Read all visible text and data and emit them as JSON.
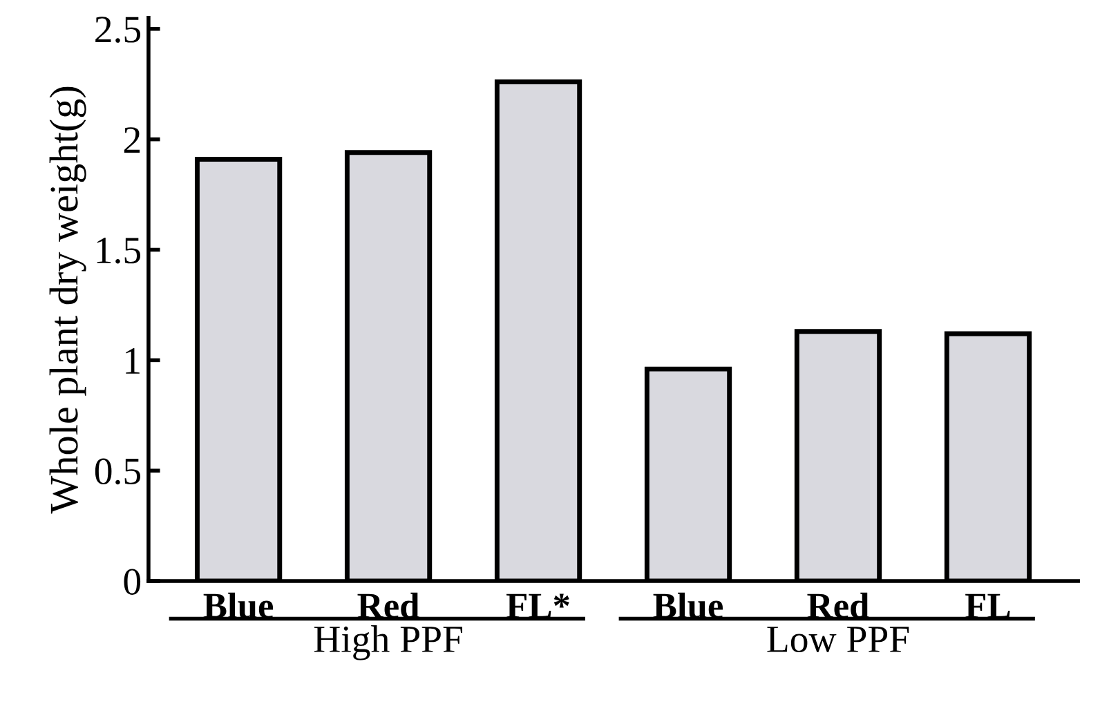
{
  "chart_data": {
    "type": "bar",
    "ylabel": "Whole plant dry weight(g)",
    "categories": [
      "Blue",
      "Red",
      "FL*",
      "Blue",
      "Red",
      "FL"
    ],
    "values": [
      1.91,
      1.94,
      2.26,
      0.96,
      1.13,
      1.12
    ],
    "color": "#d9d9df",
    "ylim": [
      0,
      2.55
    ],
    "yticks": [
      0,
      0.5,
      1,
      1.5,
      2,
      2.5
    ],
    "annotations": [
      "High PPF",
      "Low PPF"
    ],
    "grid": false
  }
}
